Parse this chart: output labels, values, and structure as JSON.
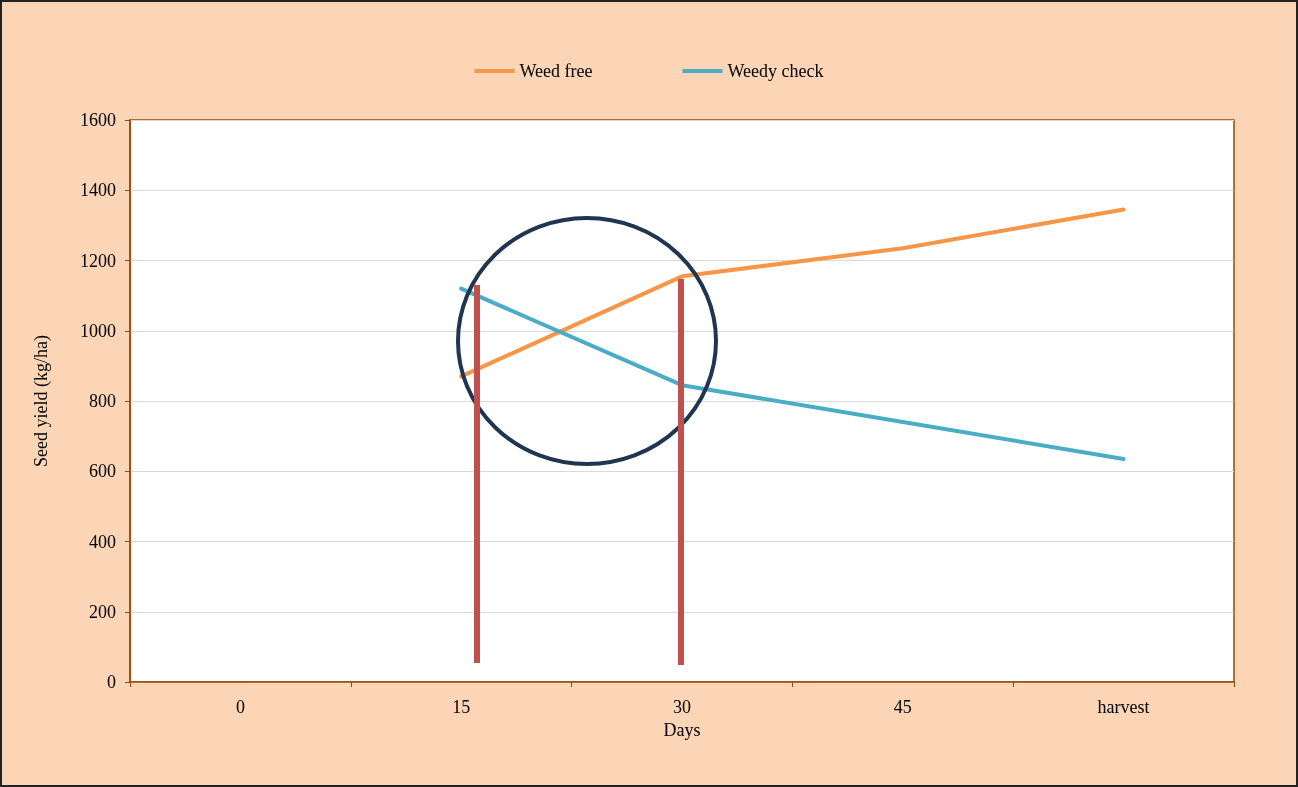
{
  "chart_data": {
    "type": "line",
    "xlabel": "Days",
    "ylabel": "Seed yield (kg/ha)",
    "categories": [
      "0",
      "15",
      "30",
      "45",
      "harvest"
    ],
    "series": [
      {
        "name": "Weed free",
        "color": "#f79646",
        "values": [
          null,
          870,
          1155,
          1235,
          1345
        ]
      },
      {
        "name": "Weedy check",
        "color": "#4bacc6",
        "values": [
          null,
          1120,
          845,
          740,
          635
        ]
      }
    ],
    "ylim": [
      0,
      1600
    ],
    "yticks": [
      0,
      200,
      400,
      600,
      800,
      1000,
      1200,
      1400,
      1600
    ],
    "grid": "y",
    "legend": "top",
    "marker": "none",
    "line_style": "solid"
  }
}
